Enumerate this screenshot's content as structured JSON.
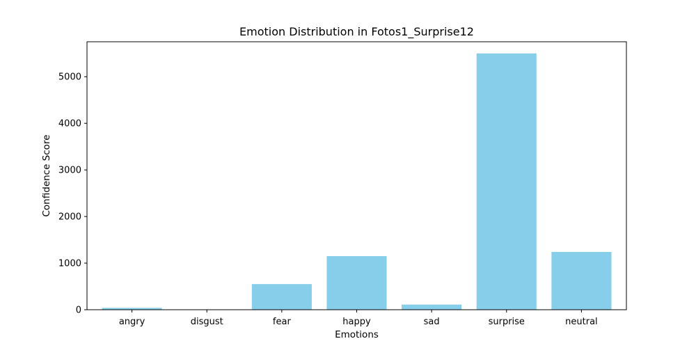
{
  "chart_data": {
    "type": "bar",
    "title": "Emotion Distribution in Fotos1_Surprise12",
    "xlabel": "Emotions",
    "ylabel": "Confidence Score",
    "categories": [
      "angry",
      "disgust",
      "fear",
      "happy",
      "sad",
      "surprise",
      "neutral"
    ],
    "values": [
      40,
      2,
      550,
      1150,
      110,
      5500,
      1240
    ],
    "ylim": [
      0,
      5750
    ],
    "yticks": [
      0,
      1000,
      2000,
      3000,
      4000,
      5000
    ],
    "grid": false,
    "bar_color": "#87ceeb"
  }
}
